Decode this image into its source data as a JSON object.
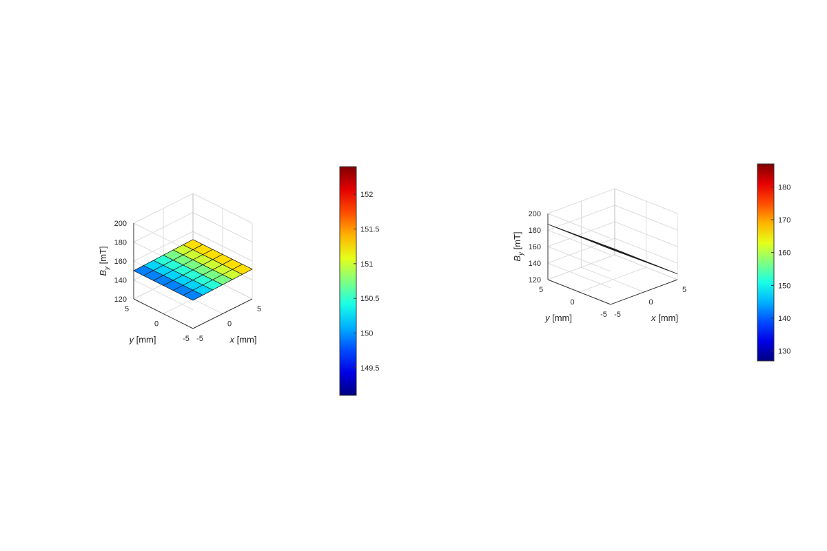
{
  "chart_data": [
    {
      "type": "surface3d",
      "title": "",
      "xlabel": {
        "var": "x",
        "unit": "[mm]"
      },
      "ylabel": {
        "var": "y",
        "unit": "[mm]"
      },
      "zlabel": {
        "var": "B",
        "sub": "y",
        "unit": "[mT]"
      },
      "xlim": [
        -5,
        5
      ],
      "ylim": [
        -5,
        5
      ],
      "zlim": [
        120,
        200
      ],
      "x_ticks": [
        "-5",
        "0",
        "5"
      ],
      "y_ticks": [
        "-5",
        "0",
        "5"
      ],
      "z_ticks": [
        "120",
        "140",
        "160",
        "180",
        "200"
      ],
      "grid": true,
      "colormap": "jet",
      "colorbar": {
        "min": 149.1,
        "max": 152.4,
        "ticks": [
          "149.5",
          "150",
          "150.5",
          "151",
          "151.5",
          "152"
        ]
      },
      "grid_n": 7,
      "surface": {
        "description": "B_y values at grid nodes; x and y span -5 to 5 mm",
        "z_center": 150.6,
        "dz_dx": 0.16,
        "dz_dy": 0.0,
        "z_min": 149.1,
        "z_max": 152.4
      }
    },
    {
      "type": "surface3d",
      "title": "",
      "xlabel": {
        "var": "x",
        "unit": "[mm]"
      },
      "ylabel": {
        "var": "y",
        "unit": "[mm]"
      },
      "zlabel": {
        "var": "B",
        "sub": "y",
        "unit": "[mT]"
      },
      "xlim": [
        -5,
        5
      ],
      "ylim": [
        -5,
        5
      ],
      "zlim": [
        120,
        200
      ],
      "x_ticks": [
        "-5",
        "0",
        "5"
      ],
      "y_ticks": [
        "-5",
        "0",
        "5"
      ],
      "z_ticks": [
        "120",
        "140",
        "160",
        "180",
        "200"
      ],
      "grid": true,
      "colormap": "jet",
      "colorbar": {
        "min": 127,
        "max": 187,
        "ticks": [
          "130",
          "140",
          "150",
          "160",
          "170",
          "180"
        ]
      },
      "grid_n": 7,
      "surface": {
        "description": "B_y values at grid nodes; x and y span -5 to 5 mm",
        "z_center": 157,
        "dz_dx": -6.0,
        "dz_dy": 0.0,
        "z_min": 127,
        "z_max": 187
      }
    }
  ]
}
